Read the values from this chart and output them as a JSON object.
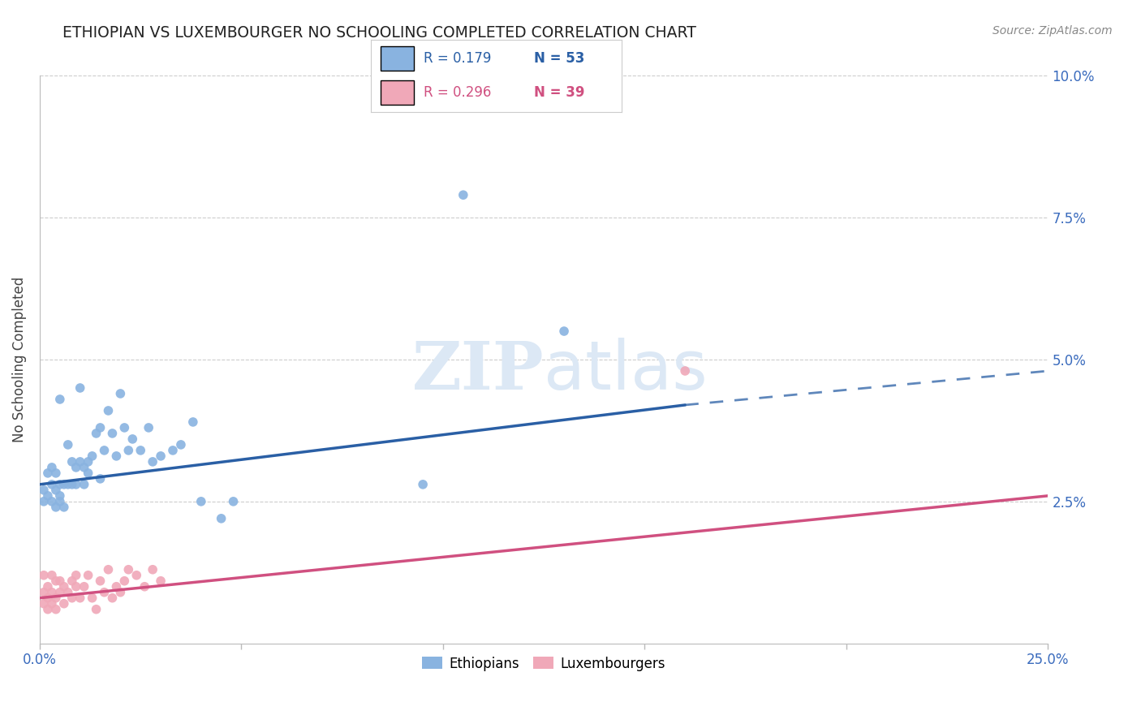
{
  "title": "ETHIOPIAN VS LUXEMBOURGER NO SCHOOLING COMPLETED CORRELATION CHART",
  "source": "Source: ZipAtlas.com",
  "ylabel": "No Schooling Completed",
  "xlabel": "",
  "xlim": [
    0.0,
    0.25
  ],
  "ylim": [
    0.0,
    0.1
  ],
  "xticks": [
    0.0,
    0.05,
    0.1,
    0.15,
    0.2,
    0.25
  ],
  "yticks": [
    0.0,
    0.025,
    0.05,
    0.075,
    0.1
  ],
  "ytick_labels": [
    "",
    "2.5%",
    "5.0%",
    "7.5%",
    "10.0%"
  ],
  "xtick_labels": [
    "0.0%",
    "",
    "",
    "",
    "",
    "25.0%"
  ],
  "blue_color": "#89b3e0",
  "pink_color": "#f0a8b8",
  "line_blue_color": "#2a5fa5",
  "line_pink_color": "#d05080",
  "grid_color": "#cccccc",
  "title_color": "#222222",
  "tick_color": "#3a6bbd",
  "watermark_color": "#dce8f5",
  "ethiopians_x": [
    0.001,
    0.001,
    0.002,
    0.002,
    0.003,
    0.003,
    0.003,
    0.004,
    0.004,
    0.004,
    0.005,
    0.005,
    0.005,
    0.005,
    0.006,
    0.006,
    0.007,
    0.007,
    0.008,
    0.008,
    0.009,
    0.009,
    0.01,
    0.01,
    0.011,
    0.011,
    0.012,
    0.012,
    0.013,
    0.014,
    0.015,
    0.015,
    0.016,
    0.017,
    0.018,
    0.019,
    0.02,
    0.021,
    0.022,
    0.023,
    0.025,
    0.027,
    0.028,
    0.03,
    0.033,
    0.035,
    0.038,
    0.04,
    0.045,
    0.048,
    0.095,
    0.105,
    0.13
  ],
  "ethiopians_y": [
    0.027,
    0.025,
    0.026,
    0.03,
    0.025,
    0.028,
    0.031,
    0.024,
    0.027,
    0.03,
    0.026,
    0.028,
    0.043,
    0.025,
    0.028,
    0.024,
    0.035,
    0.028,
    0.032,
    0.028,
    0.031,
    0.028,
    0.032,
    0.045,
    0.031,
    0.028,
    0.03,
    0.032,
    0.033,
    0.037,
    0.029,
    0.038,
    0.034,
    0.041,
    0.037,
    0.033,
    0.044,
    0.038,
    0.034,
    0.036,
    0.034,
    0.038,
    0.032,
    0.033,
    0.034,
    0.035,
    0.039,
    0.025,
    0.022,
    0.025,
    0.028,
    0.079,
    0.055
  ],
  "luxembourgers_x": [
    0.001,
    0.001,
    0.001,
    0.002,
    0.002,
    0.002,
    0.003,
    0.003,
    0.003,
    0.004,
    0.004,
    0.004,
    0.005,
    0.005,
    0.006,
    0.006,
    0.007,
    0.008,
    0.008,
    0.009,
    0.009,
    0.01,
    0.011,
    0.012,
    0.013,
    0.014,
    0.015,
    0.016,
    0.017,
    0.018,
    0.019,
    0.02,
    0.021,
    0.022,
    0.024,
    0.026,
    0.028,
    0.03,
    0.16
  ],
  "luxembourgers_y": [
    0.012,
    0.009,
    0.007,
    0.01,
    0.008,
    0.006,
    0.012,
    0.009,
    0.007,
    0.011,
    0.008,
    0.006,
    0.011,
    0.009,
    0.01,
    0.007,
    0.009,
    0.011,
    0.008,
    0.01,
    0.012,
    0.008,
    0.01,
    0.012,
    0.008,
    0.006,
    0.011,
    0.009,
    0.013,
    0.008,
    0.01,
    0.009,
    0.011,
    0.013,
    0.012,
    0.01,
    0.013,
    0.011,
    0.048
  ],
  "blue_line_x_start": 0.0,
  "blue_line_x_solid_end": 0.16,
  "blue_line_x_end": 0.25,
  "blue_line_y_start": 0.028,
  "blue_line_y_solid_end": 0.042,
  "blue_line_y_end": 0.048,
  "pink_line_x_start": 0.0,
  "pink_line_x_end": 0.25,
  "pink_line_y_start": 0.008,
  "pink_line_y_end": 0.026
}
